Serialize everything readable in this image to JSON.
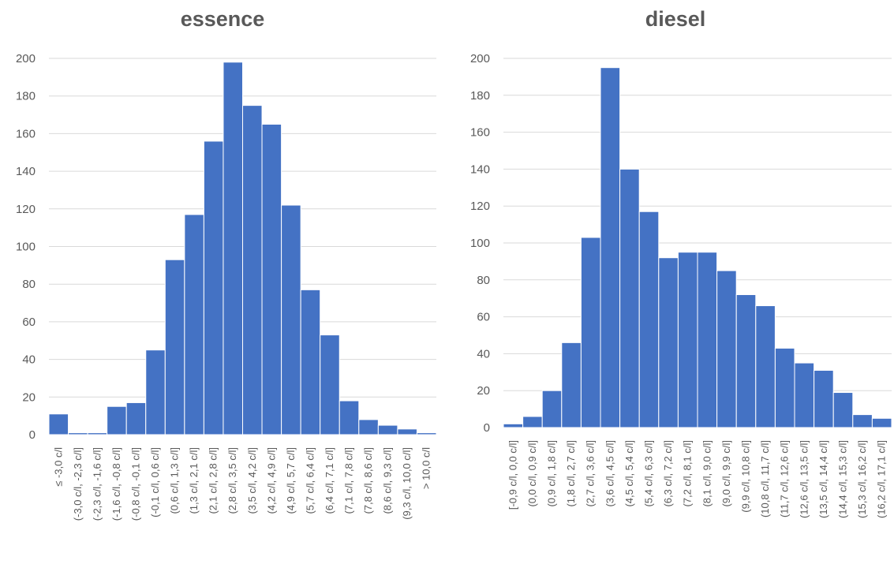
{
  "chart_data": [
    {
      "type": "bar",
      "title": "essence",
      "xlabel": "",
      "ylabel": "",
      "ylim": [
        0,
        200
      ],
      "yticks": [
        0,
        20,
        40,
        60,
        80,
        100,
        120,
        140,
        160,
        180,
        200
      ],
      "grid": true,
      "categories": [
        "≤ -3,0 c/l",
        "(-3,0 c/l, -2,3 c/l]",
        "(-2,3 c/l, -1,6 c/l]",
        "(-1,6 c/l, -0,8 c/l]",
        "(-0,8 c/l, -0,1 c/l]",
        "(-0,1 c/l, 0,6 c/l]",
        "(0,6 c/l, 1,3 c/l]",
        "(1,3 c/l, 2,1 c/l]",
        "(2,1 c/l, 2,8 c/l]",
        "(2,8 c/l, 3,5 c/l]",
        "(3,5 c/l, 4,2 c/l]",
        "(4,2 c/l, 4,9 c/l]",
        "(4,9 c/l, 5,7 c/l]",
        "(5,7 c/l, 6,4 c/l]",
        "(6,4 c/l, 7,1 c/l]",
        "(7,1 c/l, 7,8 c/l]",
        "(7,8 c/l, 8,6 c/l]",
        "(8,6 c/l, 9,3 c/l]",
        "(9,3 c/l, 10,0 c/l]",
        "> 10,0 c/l"
      ],
      "values": [
        11,
        1,
        1,
        15,
        17,
        45,
        93,
        117,
        156,
        198,
        175,
        165,
        122,
        77,
        53,
        18,
        8,
        5,
        3,
        1
      ],
      "color": "#4472c4"
    },
    {
      "type": "bar",
      "title": "diesel",
      "xlabel": "",
      "ylabel": "",
      "ylim": [
        0,
        200
      ],
      "yticks": [
        0,
        20,
        40,
        60,
        80,
        100,
        120,
        140,
        160,
        180,
        200
      ],
      "grid": true,
      "categories": [
        "[-0,9 c/l, 0,0 c/l]",
        "(0,0 c/l, 0,9 c/l]",
        "(0,9 c/l, 1,8 c/l]",
        "(1,8 c/l, 2,7 c/l]",
        "(2,7 c/l, 3,6 c/l]",
        "(3,6 c/l, 4,5 c/l]",
        "(4,5 c/l, 5,4 c/l]",
        "(5,4 c/l, 6,3 c/l]",
        "(6,3 c/l, 7,2 c/l]",
        "(7,2 c/l, 8,1 c/l]",
        "(8,1 c/l, 9,0 c/l]",
        "(9,0 c/l, 9,9 c/l]",
        "(9,9 c/l, 10,8 c/l]",
        "(10,8 c/l, 11,7 c/l]",
        "(11,7 c/l, 12,6 c/l]",
        "(12,6 c/l, 13,5 c/l]",
        "(13,5 c/l, 14,4 c/l]",
        "(14,4 c/l, 15,3 c/l]",
        "(15,3 c/l, 16,2 c/l]",
        "(16,2 c/l, 17,1 c/l]"
      ],
      "values": [
        2,
        6,
        20,
        46,
        103,
        195,
        140,
        117,
        92,
        95,
        95,
        85,
        72,
        66,
        43,
        35,
        31,
        19,
        7,
        5
      ],
      "color": "#4472c4"
    }
  ]
}
